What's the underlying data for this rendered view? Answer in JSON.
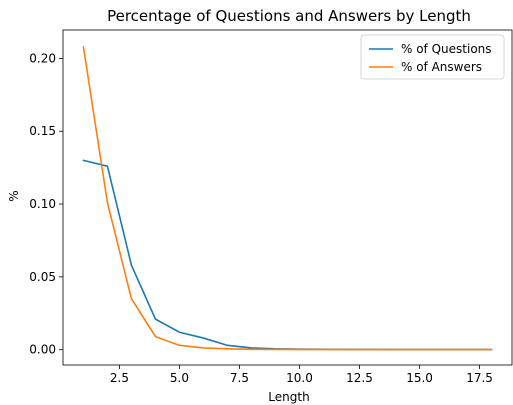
{
  "chart_data": {
    "type": "line",
    "title": "Percentage of Questions and Answers by Length",
    "xlabel": "Length",
    "ylabel": "%",
    "xlim": [
      0.15,
      18.85
    ],
    "ylim": [
      -0.0105,
      0.2195
    ],
    "xticks": [
      2.5,
      5.0,
      7.5,
      10.0,
      12.5,
      15.0,
      17.5
    ],
    "xtick_labels": [
      "2.5",
      "5.0",
      "7.5",
      "10.0",
      "12.5",
      "15.0",
      "17.5"
    ],
    "yticks": [
      0.0,
      0.05,
      0.1,
      0.15,
      0.2
    ],
    "ytick_labels": [
      "0.00",
      "0.05",
      "0.10",
      "0.15",
      "0.20"
    ],
    "grid": false,
    "legend_position": "top-right",
    "x": [
      1,
      2,
      3,
      4,
      5,
      6,
      7,
      8,
      9,
      10,
      11,
      12,
      13,
      14,
      15,
      16,
      17,
      18
    ],
    "series": [
      {
        "name": "% of Questions",
        "color": "#1f77b4",
        "values": [
          0.13,
          0.126,
          0.058,
          0.021,
          0.012,
          0.008,
          0.003,
          0.0012,
          0.0006,
          0.0004,
          0.0003,
          0.0002,
          0.0002,
          0.0001,
          0.0001,
          0.0001,
          0.0001,
          0.0001
        ]
      },
      {
        "name": "% of Answers",
        "color": "#ff7f0e",
        "values": [
          0.208,
          0.101,
          0.035,
          0.009,
          0.003,
          0.0012,
          0.0006,
          0.0003,
          0.0002,
          0.0001,
          0.0001,
          0.0001,
          0.0001,
          0.0001,
          0.0001,
          0.0001,
          0.0001,
          0.0001
        ]
      }
    ]
  }
}
